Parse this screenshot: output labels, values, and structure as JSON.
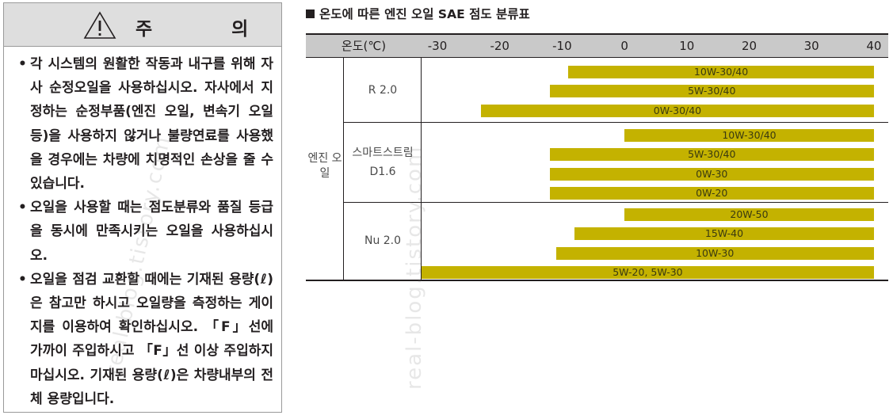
{
  "caution": {
    "title": "주 의",
    "icon": "warning-triangle-icon",
    "items": [
      "각 시스템의 원활한 작동과 내구를 위해 자사 순정오일을 사용하십시오. 자사에서 지정하는 순정부품(엔진 오일, 변속기 오일 등)을 사용하지 않거나 불량연료를 사용했을 경우에는 차량에 치명적인 손상을 줄 수 있습니다.",
      "오일을 사용할 때는 점도분류와 품질 등급을 동시에 만족시키는 오일을 사용하십시오.",
      "오일을 점검 교환할 때에는 기재된 용량(ℓ)은 참고만 하시고 오일량을 측정하는 게이지를 이용하여 확인하십시오. 「F」선에 가까이 주입하시고 「F」선 이상 주입하지 마십시오. 기재된 용량(ℓ)은 차량내부의 전체 용량입니다."
    ]
  },
  "table": {
    "title": "온도에 따른 엔진 오일 SAE 점도 분류표",
    "header_label": "온도(℃)",
    "ticks": [
      "-30",
      "-20",
      "-10",
      "0",
      "10",
      "20",
      "30",
      "40"
    ],
    "tick_values": [
      -30,
      -20,
      -10,
      0,
      10,
      20,
      30,
      40
    ],
    "group_label": "엔진 오일",
    "bar_color": "#c4b200",
    "models": [
      {
        "name": "R 2.0",
        "bars": [
          {
            "label": "10W-30/40",
            "from": -9,
            "to": 40
          },
          {
            "label": "5W-30/40",
            "from": -12,
            "to": 40
          },
          {
            "label": "0W-30/40",
            "from": -23,
            "to": 40
          }
        ]
      },
      {
        "name": "스마트스트림 D1.6",
        "bars": [
          {
            "label": "10W-30/40",
            "from": 0,
            "to": 40
          },
          {
            "label": "5W-30/40",
            "from": -12,
            "to": 40
          },
          {
            "label": "0W-30",
            "from": -12,
            "to": 40
          },
          {
            "label": "0W-20",
            "from": -12,
            "to": 40
          }
        ]
      },
      {
        "name": "Nu 2.0",
        "bars": [
          {
            "label": "20W-50",
            "from": 0,
            "to": 40
          },
          {
            "label": "15W-40",
            "from": -8,
            "to": 40
          },
          {
            "label": "10W-30",
            "from": -11,
            "to": 40
          },
          {
            "label": "5W-20, 5W-30",
            "from": -30,
            "to": 40
          }
        ]
      }
    ]
  },
  "watermarks": [
    "real-blog.tistory.com",
    "real-blog.tistory.com"
  ]
}
